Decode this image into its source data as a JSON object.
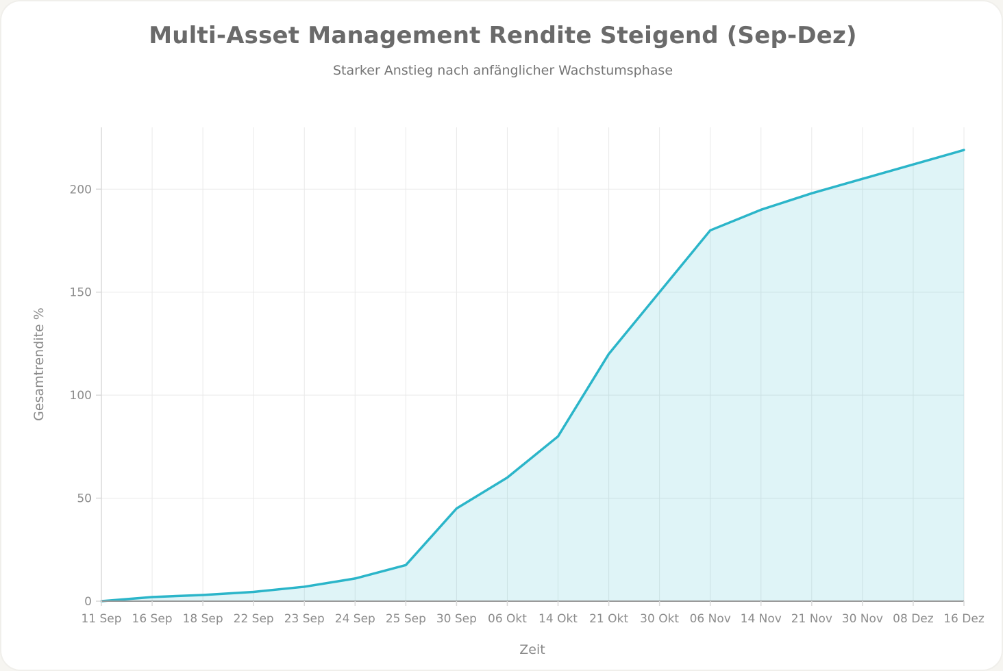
{
  "chart_data": {
    "type": "area",
    "title": "Multi-Asset Management Rendite Steigend (Sep-Dez)",
    "subtitle": "Starker Anstieg nach anfänglicher Wachstumsphase",
    "xlabel": "Zeit",
    "ylabel": "Gesamtrendite %",
    "categories": [
      "11 Sep",
      "16 Sep",
      "18 Sep",
      "22 Sep",
      "23 Sep",
      "24 Sep",
      "25 Sep",
      "30 Sep",
      "06 Okt",
      "14 Okt",
      "21 Okt",
      "30 Okt",
      "06 Nov",
      "14 Nov",
      "21 Nov",
      "30 Nov",
      "08 Dez",
      "16 Dez"
    ],
    "series": [
      {
        "name": "Gesamtrendite",
        "values": [
          0,
          2,
          3,
          4.5,
          7,
          11,
          17.5,
          45,
          60,
          80,
          120,
          150,
          180,
          190,
          198,
          205,
          212,
          219
        ]
      }
    ],
    "yticks": [
      0,
      50,
      100,
      150,
      200
    ],
    "ylim": [
      0,
      230
    ],
    "grid": true,
    "legend_position": "none",
    "line_color": "#2bb5c9",
    "fill_color": "rgba(43,181,201,0.15)",
    "title_color": "#6a6a6a",
    "subtitle_color": "#757575",
    "tick_color": "#8c8c8c"
  }
}
